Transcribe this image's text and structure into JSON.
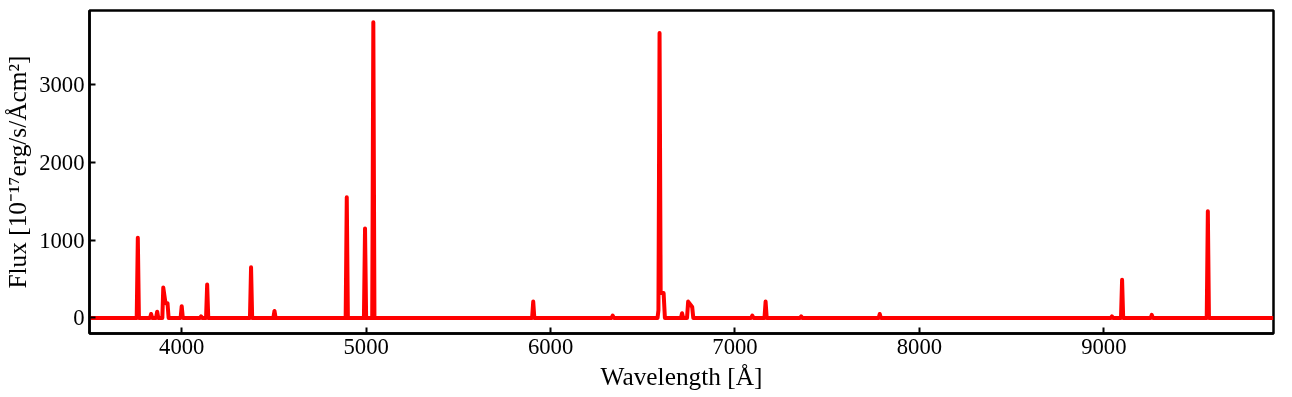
{
  "chart_data": {
    "type": "line",
    "xlabel": "Wavelength [Å]",
    "ylabel": "Flux [10⁻¹⁷erg/s/Åcm²]",
    "xlim": [
      3500,
      9920
    ],
    "ylim": [
      -200,
      3950
    ],
    "xticks": [
      4000,
      5000,
      6000,
      7000,
      8000,
      9000
    ],
    "yticks": [
      0,
      1000,
      2000,
      3000
    ],
    "grid": false,
    "series": [
      {
        "color": "#ff0000",
        "x": [
          3500,
          3756,
          3762,
          3768,
          3828,
          3834,
          3840,
          3861,
          3867,
          3873,
          3895,
          3900,
          3912,
          3923,
          3929,
          3994,
          4000,
          4006,
          4099,
          4105,
          4111,
          4132,
          4138,
          4144,
          4370,
          4376,
          4382,
          4497,
          4503,
          4509,
          4889,
          4895,
          4901,
          4988,
          4994,
          5000,
          5033,
          5039,
          5045,
          5900,
          5906,
          5912,
          6331,
          6337,
          6343,
          6580,
          6585,
          6591,
          6597,
          6613,
          6620,
          6707,
          6713,
          6719,
          6740,
          6746,
          6768,
          6774,
          7088,
          7094,
          7100,
          7160,
          7166,
          7172,
          7353,
          7359,
          7365,
          7779,
          7785,
          7791,
          9038,
          9044,
          9050,
          9093,
          9099,
          9105,
          9254,
          9260,
          9266,
          9558,
          9564,
          9570,
          9920
        ],
        "values": [
          0,
          0,
          1030,
          0,
          0,
          50,
          0,
          0,
          80,
          0,
          0,
          390,
          190,
          190,
          0,
          0,
          150,
          0,
          0,
          20,
          0,
          0,
          430,
          0,
          0,
          650,
          0,
          0,
          90,
          0,
          0,
          1550,
          0,
          0,
          1150,
          0,
          0,
          3800,
          0,
          0,
          210,
          0,
          0,
          30,
          0,
          0,
          100,
          3660,
          320,
          320,
          0,
          0,
          60,
          0,
          0,
          210,
          140,
          0,
          0,
          30,
          0,
          0,
          210,
          0,
          0,
          20,
          0,
          0,
          50,
          0,
          0,
          20,
          0,
          0,
          490,
          0,
          0,
          40,
          0,
          0,
          1370,
          0,
          0
        ]
      }
    ]
  }
}
